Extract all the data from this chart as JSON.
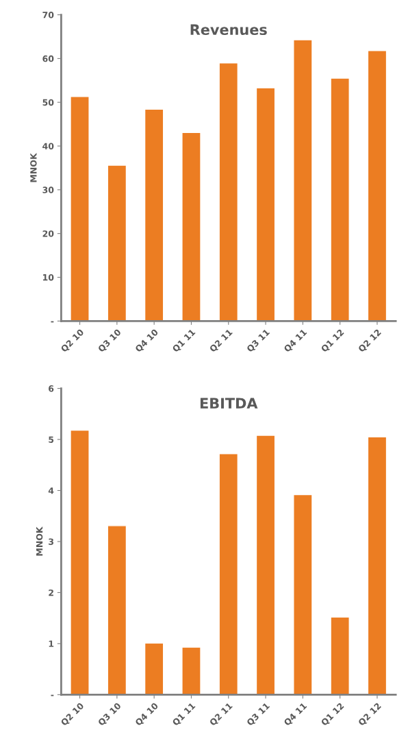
{
  "chart_data": [
    {
      "type": "bar",
      "title": "Revenues",
      "ylabel": "MNOK",
      "categories": [
        "Q2 10",
        "Q3 10",
        "Q4 10",
        "Q1 11",
        "Q2 11",
        "Q3 11",
        "Q4 11",
        "Q1 12",
        "Q2 12"
      ],
      "values": [
        51.3,
        35.6,
        48.4,
        43.1,
        59.0,
        53.3,
        64.3,
        55.5,
        61.8
      ],
      "color": "#ec7d22",
      "ylim": [
        0,
        70
      ],
      "yticks": [
        {
          "value": 0,
          "label": "-"
        },
        10,
        20,
        30,
        40,
        50,
        60,
        70
      ],
      "grid": false,
      "legend": false
    },
    {
      "type": "bar",
      "title": "EBITDA",
      "ylabel": "MNOK",
      "categories": [
        "Q2 10",
        "Q3 10",
        "Q4 10",
        "Q1 11",
        "Q2 11",
        "Q3 11",
        "Q4 11",
        "Q1 12",
        "Q2 12"
      ],
      "values": [
        5.18,
        3.31,
        1.01,
        0.93,
        4.72,
        5.08,
        3.92,
        1.52,
        5.05
      ],
      "color": "#ec7d22",
      "ylim": [
        0,
        6
      ],
      "yticks": [
        {
          "value": 0,
          "label": "-"
        },
        1,
        2,
        3,
        4,
        5,
        6
      ],
      "grid": false,
      "legend": false
    }
  ]
}
